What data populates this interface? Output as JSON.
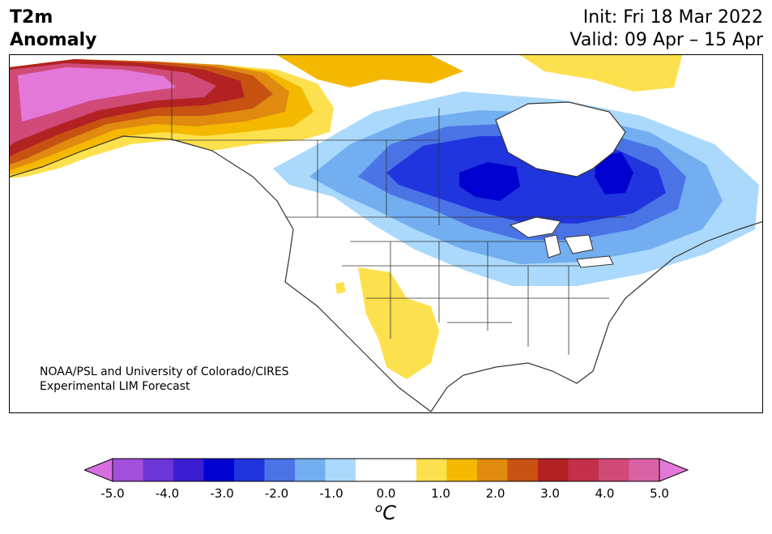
{
  "header": {
    "title_line1": "T2m",
    "title_line2": "Anomaly",
    "init": "Init: Fri 18 Mar 2022",
    "valid": "Valid: 09 Apr – 15 Apr"
  },
  "map": {
    "region": "North America",
    "credit_line1": "NOAA/PSL and University of Colorado/CIRES",
    "credit_line2": "Experimental LIM Forecast"
  },
  "colorbar": {
    "ticks": [
      "-5.0",
      "-4.0",
      "-3.0",
      "-2.0",
      "-1.0",
      "0.0",
      "1.0",
      "2.0",
      "3.0",
      "4.0",
      "5.0"
    ],
    "unit_superscript": "o",
    "unit": "C",
    "colors": [
      "#d76ee0",
      "#a24fdb",
      "#6b35d8",
      "#3b1ed2",
      "#0000d0",
      "#2035dd",
      "#4a74e6",
      "#72aef0",
      "#aad9fb",
      "#ffffff",
      "#ffffff",
      "#fde04d",
      "#f4b800",
      "#e08a10",
      "#c85212",
      "#b22222",
      "#c2304a",
      "#d04a78",
      "#d962a4",
      "#e478d9"
    ]
  }
}
